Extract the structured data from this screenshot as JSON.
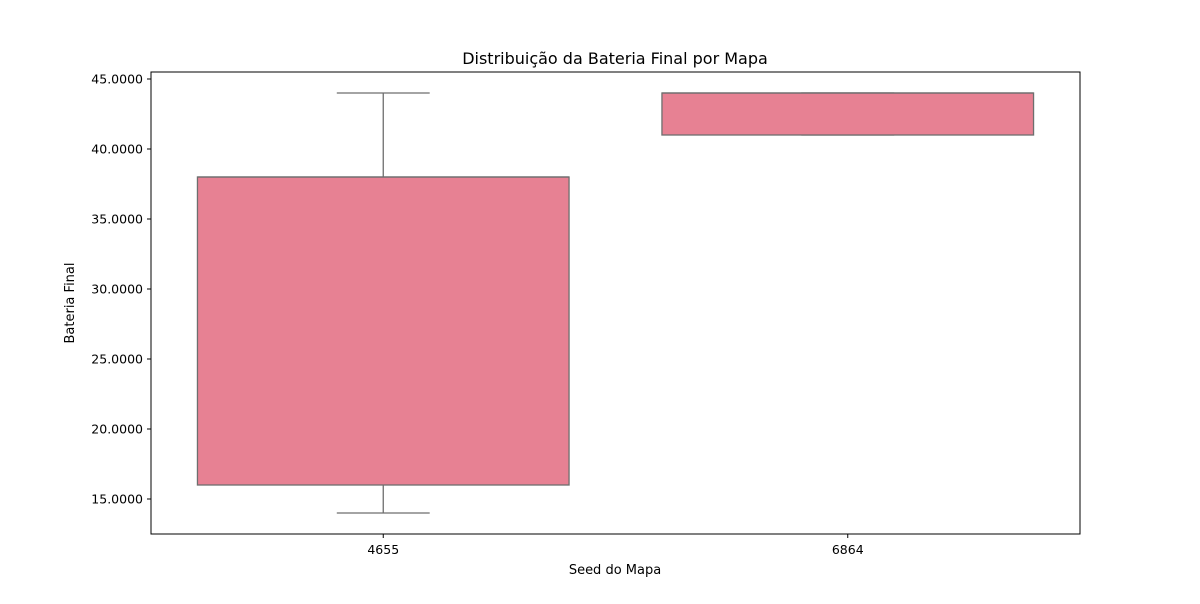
{
  "chart_data": {
    "type": "box",
    "title": "Distribuição da Bateria Final por Mapa",
    "xlabel": "Seed do Mapa",
    "ylabel": "Bateria Final",
    "categories": [
      "4655",
      "6864"
    ],
    "boxes": [
      {
        "category": "4655",
        "whisker_low": 14,
        "q1": 16,
        "median": 38,
        "q3": 38,
        "whisker_high": 44
      },
      {
        "category": "6864",
        "whisker_low": 41,
        "q1": 41,
        "median": 44,
        "q3": 44,
        "whisker_high": 44
      }
    ],
    "yticks": [
      15,
      20,
      25,
      30,
      35,
      40,
      45
    ],
    "ytick_labels": [
      "15.0000",
      "20.0000",
      "25.0000",
      "30.0000",
      "35.0000",
      "40.0000",
      "45.0000"
    ],
    "ylim": [
      12.5,
      45.5
    ],
    "grid": false,
    "legend": "none",
    "colors": {
      "box_fill": "#e78193",
      "box_edge": "#6e6e6e",
      "axes": "#000000"
    }
  }
}
